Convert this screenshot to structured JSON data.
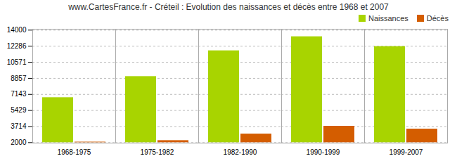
{
  "chart_data": {
    "type": "bar",
    "title": "www.CartesFrance.fr - Créteil : Evolution des naissances et décès entre 1968 et 2007",
    "categories": [
      "1968-1975",
      "1975-1982",
      "1982-1990",
      "1990-1999",
      "1999-2007"
    ],
    "series": [
      {
        "name": "Naissances",
        "color": "#a8d400",
        "values": [
          6800,
          9050,
          11800,
          13300,
          12250
        ]
      },
      {
        "name": "Décès",
        "color": "#d45d00",
        "values": [
          2060,
          2220,
          2920,
          3750,
          3450
        ]
      }
    ],
    "ylim": [
      1950,
      14100
    ],
    "yticks": [
      2000,
      3714,
      5429,
      7143,
      8857,
      10571,
      12286,
      14000
    ],
    "grid": true,
    "legend": "upper right"
  }
}
